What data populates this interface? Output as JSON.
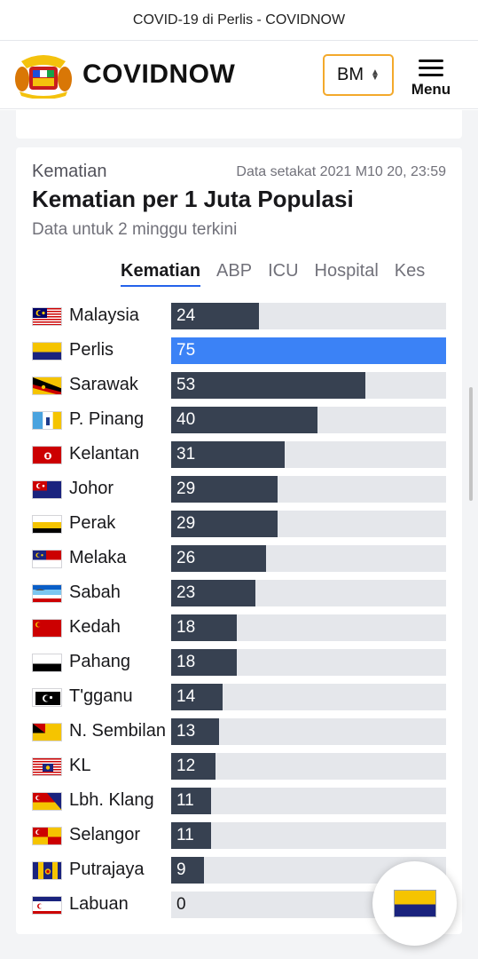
{
  "browser": {
    "title": "COVID-19 di Perlis - COVIDNOW"
  },
  "header": {
    "logo_icon": "malaysia-coat-of-arms-icon",
    "brand": "COVIDNOW",
    "language": "BM",
    "menu_label": "Menu"
  },
  "card": {
    "eyebrow": "Kematian",
    "updated": "Data setakat 2021 M10 20, 23:59",
    "title": "Kematian per 1 Juta Populasi",
    "subtitle": "Data untuk 2 minggu terkini",
    "tabs": [
      {
        "label": "Kematian",
        "active": true
      },
      {
        "label": "ABP",
        "active": false
      },
      {
        "label": "ICU",
        "active": false
      },
      {
        "label": "Hospital",
        "active": false
      },
      {
        "label": "Kes",
        "active": false
      }
    ]
  },
  "colors": {
    "bar": "#374151",
    "highlight": "#3b82f6",
    "track": "#e5e7eb",
    "tab_underline": "#2563eb",
    "lang_border": "#f3a92b"
  },
  "chart_data": {
    "type": "bar",
    "orientation": "horizontal",
    "categories": [
      "Malaysia",
      "Perlis",
      "Sarawak",
      "P. Pinang",
      "Kelantan",
      "Johor",
      "Perak",
      "Melaka",
      "Sabah",
      "Kedah",
      "Pahang",
      "T'gganu",
      "N. Sembilan",
      "KL",
      "Lbh. Klang",
      "Selangor",
      "Putrajaya",
      "Labuan"
    ],
    "values": [
      24,
      75,
      53,
      40,
      31,
      29,
      29,
      26,
      23,
      18,
      18,
      14,
      13,
      12,
      11,
      11,
      9,
      0
    ],
    "highlight": "Perlis",
    "xlim": [
      0,
      75
    ],
    "grid": false,
    "legend": "none"
  },
  "fab": {
    "icon": "perlis-flag-icon"
  }
}
